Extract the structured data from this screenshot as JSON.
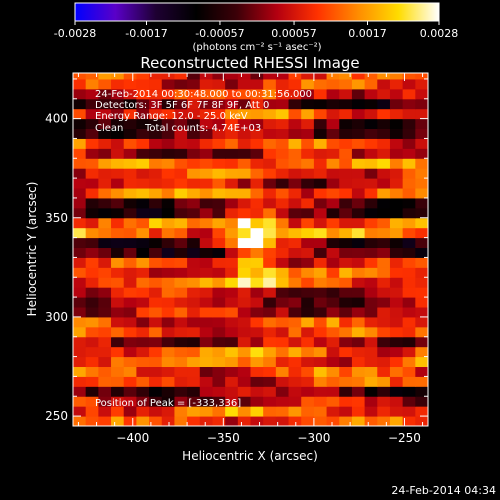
{
  "colorbar": {
    "ticks": [
      "-0.0028",
      "-0.0017",
      "-0.00057",
      "0.00057",
      "0.0017",
      "0.0028"
    ],
    "tick_values": [
      -0.0028,
      -0.0017,
      -0.00057,
      0.00057,
      0.0017,
      0.0028
    ],
    "range": [
      -0.0028,
      0.0028
    ],
    "units": "(photons cm⁻² s⁻¹ asec⁻²)",
    "colormap": [
      "#0000ff",
      "#5a00c8",
      "#1e0032",
      "#000000",
      "#3c0008",
      "#b40010",
      "#ff3200",
      "#ff8c00",
      "#ffdc00",
      "#ffffff"
    ]
  },
  "footer": {
    "timestamp": "24-Feb-2014 04:34"
  },
  "chart_data": {
    "type": "heatmap",
    "title": "Reconstructed RHESSI Image",
    "xlabel": "Heliocentric X (arcsec)",
    "ylabel": "Heliocentric Y (arcsec)",
    "xlim": [
      -433,
      -237
    ],
    "ylim": [
      245,
      423
    ],
    "xticks": [
      -400,
      -350,
      -300,
      -250
    ],
    "yticks": [
      250,
      300,
      350,
      400
    ],
    "xtick_labels": [
      "−400",
      "−350",
      "−300",
      "−250"
    ],
    "ytick_labels": [
      "250",
      "300",
      "350",
      "400"
    ],
    "annotations": [
      "24-Feb-2014 00:30:48.000 to 00:31:56.000",
      "Detectors: 3F 5F 6F 7F 8F 9F, Att 0",
      "Energy Range: 12.0 - 25.0 keV",
      "Clean",
      "Total counts: 4.74E+03"
    ],
    "peak_label": "Position of Peak = [-333,336]",
    "peak": [
      -333,
      336
    ],
    "peak_value": 0.0028,
    "background_level": 0.0005,
    "source_sigma_arcsec": [
      10,
      12
    ]
  }
}
